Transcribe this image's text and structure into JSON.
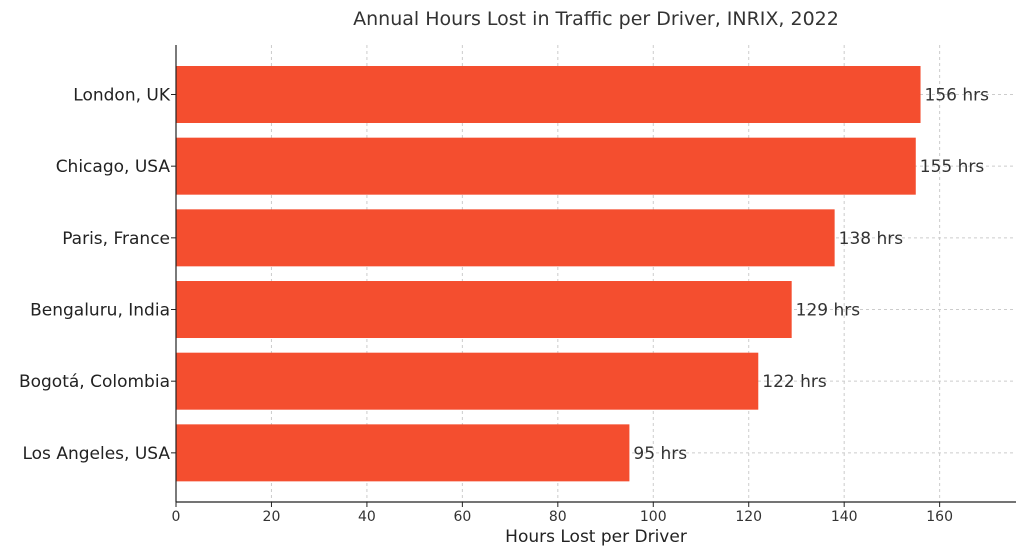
{
  "chart_data": {
    "type": "bar",
    "orientation": "horizontal",
    "title": "Annual Hours Lost in Traffic per Driver, INRIX, 2022",
    "xlabel": "Hours Lost per Driver",
    "ylabel": "",
    "categories": [
      "London, UK",
      "Chicago, USA",
      "Paris, France",
      "Bengaluru, India",
      "Bogotá, Colombia",
      "Los Angeles, USA"
    ],
    "values": [
      156,
      155,
      138,
      129,
      122,
      95
    ],
    "data_labels": [
      "156 hrs",
      "155 hrs",
      "138 hrs",
      "129 hrs",
      "122 hrs",
      "95 hrs"
    ],
    "xlim": [
      0,
      176
    ],
    "xticks": [
      0,
      20,
      40,
      60,
      80,
      100,
      120,
      140,
      160
    ],
    "grid": true,
    "bar_color": "#f44e2f"
  }
}
